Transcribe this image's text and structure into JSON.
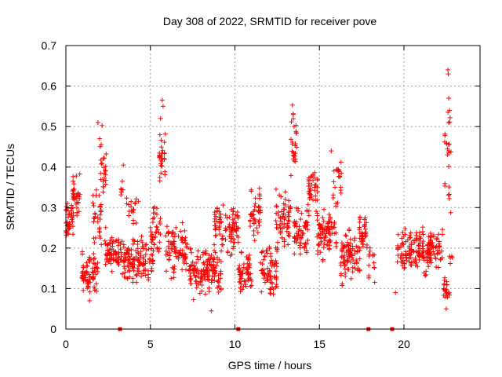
{
  "chart_data": {
    "type": "scatter",
    "title": "Day 308 of 2022, SRMTID for receiver pove",
    "xlabel": "GPS time / hours",
    "ylabel": "SRMTID / TECUs",
    "xlim": [
      0,
      24.5
    ],
    "ylim": [
      0,
      0.7
    ],
    "xticks": [
      0,
      5,
      10,
      15,
      20
    ],
    "xtick_labels": [
      "0",
      "5",
      "10",
      "15",
      "20"
    ],
    "yticks": [
      0,
      0.1,
      0.2,
      0.3,
      0.4,
      0.5,
      0.6,
      0.7
    ],
    "ytick_labels": [
      "0",
      "0.1",
      "0.2",
      "0.3",
      "0.4",
      "0.5",
      "0.6",
      "0.7"
    ],
    "grid": true,
    "marker": "+",
    "color": "#ff0000",
    "zero_markers_x": [
      3.2,
      10.2,
      17.9,
      19.3
    ],
    "series": [
      {
        "name": "SRMTID",
        "segments": [
          {
            "x0": 0.0,
            "x1": 0.5,
            "center": 0.27,
            "spread": 0.05,
            "n": 30
          },
          {
            "x0": 0.4,
            "x1": 1.0,
            "center": 0.33,
            "spread": 0.05,
            "n": 25
          },
          {
            "x0": 0.9,
            "x1": 1.9,
            "center": 0.14,
            "spread": 0.05,
            "n": 55
          },
          {
            "x0": 1.6,
            "x1": 2.1,
            "center": 0.28,
            "spread": 0.08,
            "n": 25
          },
          {
            "x0": 2.0,
            "x1": 2.4,
            "center": 0.4,
            "spread": 0.1,
            "n": 20
          },
          {
            "x0": 2.3,
            "x1": 3.3,
            "center": 0.19,
            "spread": 0.05,
            "n": 55
          },
          {
            "x0": 3.2,
            "x1": 3.4,
            "center": 0.33,
            "spread": 0.06,
            "n": 5
          },
          {
            "x0": 3.3,
            "x1": 5.2,
            "center": 0.17,
            "spread": 0.06,
            "n": 100
          },
          {
            "x0": 3.5,
            "x1": 4.3,
            "center": 0.29,
            "spread": 0.05,
            "n": 15
          },
          {
            "x0": 5.0,
            "x1": 5.6,
            "center": 0.24,
            "spread": 0.07,
            "n": 30
          },
          {
            "x0": 5.5,
            "x1": 5.9,
            "center": 0.45,
            "spread": 0.1,
            "n": 22
          },
          {
            "x0": 5.9,
            "x1": 7.2,
            "center": 0.2,
            "spread": 0.07,
            "n": 70
          },
          {
            "x0": 7.2,
            "x1": 9.2,
            "center": 0.14,
            "spread": 0.06,
            "n": 110
          },
          {
            "x0": 8.8,
            "x1": 10.2,
            "center": 0.25,
            "spread": 0.07,
            "n": 70
          },
          {
            "x0": 10.2,
            "x1": 11.0,
            "center": 0.14,
            "spread": 0.05,
            "n": 45
          },
          {
            "x0": 10.9,
            "x1": 11.5,
            "center": 0.28,
            "spread": 0.07,
            "n": 30
          },
          {
            "x0": 11.5,
            "x1": 12.5,
            "center": 0.15,
            "spread": 0.06,
            "n": 55
          },
          {
            "x0": 12.4,
            "x1": 13.3,
            "center": 0.27,
            "spread": 0.07,
            "n": 50
          },
          {
            "x0": 13.3,
            "x1": 13.7,
            "center": 0.45,
            "spread": 0.08,
            "n": 20
          },
          {
            "x0": 13.5,
            "x1": 14.3,
            "center": 0.25,
            "spread": 0.06,
            "n": 45
          },
          {
            "x0": 14.3,
            "x1": 14.9,
            "center": 0.34,
            "spread": 0.06,
            "n": 30
          },
          {
            "x0": 14.8,
            "x1": 16.0,
            "center": 0.23,
            "spread": 0.06,
            "n": 70
          },
          {
            "x0": 15.8,
            "x1": 16.3,
            "center": 0.36,
            "spread": 0.06,
            "n": 18
          },
          {
            "x0": 16.2,
            "x1": 17.4,
            "center": 0.18,
            "spread": 0.06,
            "n": 60
          },
          {
            "x0": 17.3,
            "x1": 17.9,
            "center": 0.24,
            "spread": 0.05,
            "n": 30
          },
          {
            "x0": 17.9,
            "x1": 18.3,
            "center": 0.17,
            "spread": 0.05,
            "n": 10
          },
          {
            "x0": 19.6,
            "x1": 20.5,
            "center": 0.19,
            "spread": 0.06,
            "n": 45
          },
          {
            "x0": 20.5,
            "x1": 21.6,
            "center": 0.19,
            "spread": 0.05,
            "n": 60
          },
          {
            "x0": 21.4,
            "x1": 22.3,
            "center": 0.2,
            "spread": 0.06,
            "n": 45
          },
          {
            "x0": 22.3,
            "x1": 22.7,
            "center": 0.1,
            "spread": 0.03,
            "n": 15
          },
          {
            "x0": 22.4,
            "x1": 22.8,
            "center": 0.42,
            "spread": 0.12,
            "n": 18
          },
          {
            "x0": 22.7,
            "x1": 23.0,
            "center": 0.18,
            "spread": 0.01,
            "n": 4
          }
        ],
        "peaks": [
          {
            "x": 1.9,
            "y": 0.51
          },
          {
            "x": 2.0,
            "y": 0.47
          },
          {
            "x": 3.4,
            "y": 0.405
          },
          {
            "x": 5.7,
            "y": 0.565
          },
          {
            "x": 5.75,
            "y": 0.55
          },
          {
            "x": 5.6,
            "y": 0.52
          },
          {
            "x": 13.4,
            "y": 0.553
          },
          {
            "x": 13.45,
            "y": 0.53
          },
          {
            "x": 13.5,
            "y": 0.5
          },
          {
            "x": 15.7,
            "y": 0.44
          },
          {
            "x": 22.6,
            "y": 0.64
          },
          {
            "x": 22.62,
            "y": 0.63
          },
          {
            "x": 22.65,
            "y": 0.57
          },
          {
            "x": 22.7,
            "y": 0.54
          },
          {
            "x": 8.6,
            "y": 0.045
          },
          {
            "x": 1.4,
            "y": 0.07
          },
          {
            "x": 19.5,
            "y": 0.09
          },
          {
            "x": 22.5,
            "y": 0.05
          }
        ]
      }
    ]
  }
}
